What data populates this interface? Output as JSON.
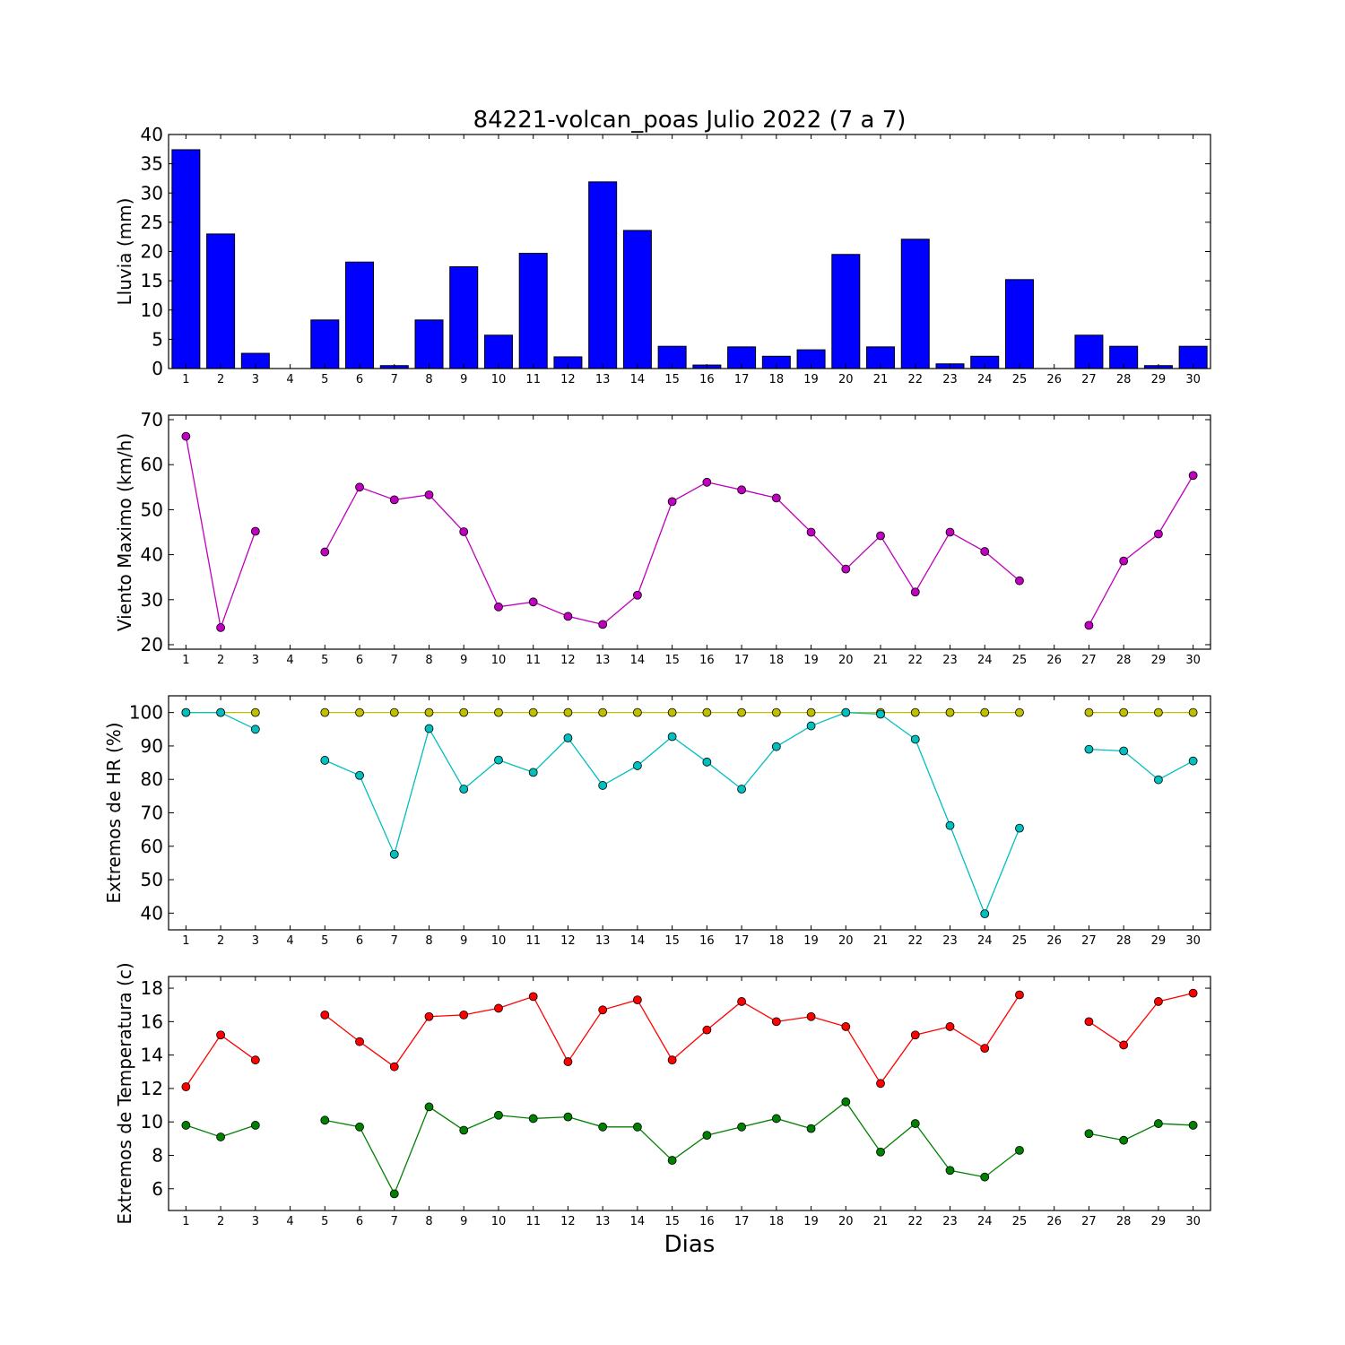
{
  "figure": {
    "title": "84221-volcan_poas Julio 2022  (7 a 7)",
    "xlabel": "Dias"
  },
  "chart_data": [
    {
      "type": "bar",
      "ylabel": "Lluvia (mm)",
      "ylim": [
        0,
        40
      ],
      "yticks": [
        0,
        5,
        10,
        15,
        20,
        25,
        30,
        35,
        40
      ],
      "xlim": [
        0.5,
        30.5
      ],
      "categories": [
        1,
        2,
        3,
        4,
        5,
        6,
        7,
        8,
        9,
        10,
        11,
        12,
        13,
        14,
        15,
        16,
        17,
        18,
        19,
        20,
        21,
        22,
        23,
        24,
        25,
        26,
        27,
        28,
        29,
        30
      ],
      "series": [
        {
          "color": "#0000ff",
          "values": [
            37.4,
            23.0,
            2.6,
            0.0,
            8.3,
            18.2,
            0.5,
            8.3,
            17.4,
            5.7,
            19.7,
            2.0,
            31.9,
            23.6,
            3.8,
            0.6,
            3.7,
            2.1,
            3.2,
            19.5,
            3.7,
            22.1,
            0.8,
            2.1,
            15.2,
            0.0,
            5.7,
            3.8,
            0.5,
            3.8
          ]
        }
      ]
    },
    {
      "type": "line",
      "ylabel": "Viento Maximo (km/h)",
      "ylim": [
        19,
        71
      ],
      "yticks": [
        20,
        30,
        40,
        50,
        60,
        70
      ],
      "xlim": [
        0.5,
        30.5
      ],
      "categories": [
        1,
        2,
        3,
        4,
        5,
        6,
        7,
        8,
        9,
        10,
        11,
        12,
        13,
        14,
        15,
        16,
        17,
        18,
        19,
        20,
        21,
        22,
        23,
        24,
        25,
        26,
        27,
        28,
        29,
        30
      ],
      "series": [
        {
          "color": "#bf00bf",
          "values": [
            66.3,
            23.8,
            45.2,
            null,
            40.6,
            55.0,
            52.2,
            53.3,
            45.1,
            28.4,
            29.5,
            26.3,
            24.5,
            31.0,
            51.8,
            56.1,
            54.4,
            52.6,
            45.0,
            36.8,
            44.2,
            31.7,
            45.0,
            40.7,
            34.2,
            null,
            24.3,
            38.6,
            44.6,
            57.6
          ]
        }
      ]
    },
    {
      "type": "line",
      "ylabel": "Extremos de HR (%)",
      "ylim": [
        35,
        105
      ],
      "yticks": [
        40,
        50,
        60,
        70,
        80,
        90,
        100
      ],
      "xlim": [
        0.5,
        30.5
      ],
      "categories": [
        1,
        2,
        3,
        4,
        5,
        6,
        7,
        8,
        9,
        10,
        11,
        12,
        13,
        14,
        15,
        16,
        17,
        18,
        19,
        20,
        21,
        22,
        23,
        24,
        25,
        26,
        27,
        28,
        29,
        30
      ],
      "series": [
        {
          "color": "#bfbf00",
          "values": [
            100,
            100,
            100,
            null,
            100,
            100,
            100,
            100,
            100,
            100,
            100,
            100,
            100,
            100,
            100,
            100,
            100,
            100,
            100,
            100,
            100,
            100,
            100,
            100,
            100,
            null,
            100,
            100,
            100,
            100
          ]
        },
        {
          "color": "#00bfbf",
          "values": [
            100,
            100,
            95.0,
            null,
            85.7,
            81.2,
            57.6,
            95.2,
            77.1,
            85.8,
            82.1,
            92.4,
            78.2,
            84.1,
            92.8,
            85.2,
            77.1,
            89.8,
            96.0,
            100,
            99.5,
            92.0,
            66.2,
            39.8,
            65.4,
            null,
            89.0,
            88.5,
            79.9,
            85.5
          ]
        }
      ]
    },
    {
      "type": "line",
      "ylabel": "Extremos de Temperatura (c)",
      "ylim": [
        4.7,
        18.7
      ],
      "yticks": [
        6,
        8,
        10,
        12,
        14,
        16,
        18
      ],
      "xlim": [
        0.5,
        30.5
      ],
      "categories": [
        1,
        2,
        3,
        4,
        5,
        6,
        7,
        8,
        9,
        10,
        11,
        12,
        13,
        14,
        15,
        16,
        17,
        18,
        19,
        20,
        21,
        22,
        23,
        24,
        25,
        26,
        27,
        28,
        29,
        30
      ],
      "series": [
        {
          "color": "#ff0000",
          "values": [
            12.1,
            15.2,
            13.7,
            null,
            16.4,
            14.8,
            13.3,
            16.3,
            16.4,
            16.8,
            17.5,
            13.6,
            16.7,
            17.3,
            13.7,
            15.5,
            17.2,
            16.0,
            16.3,
            15.7,
            12.3,
            15.2,
            15.7,
            14.4,
            17.6,
            null,
            16.0,
            14.6,
            17.2,
            17.7
          ]
        },
        {
          "color": "#008000",
          "values": [
            9.8,
            9.1,
            9.8,
            null,
            10.1,
            9.7,
            5.7,
            10.9,
            9.5,
            10.4,
            10.2,
            10.3,
            9.7,
            9.7,
            7.7,
            9.2,
            9.7,
            10.2,
            9.6,
            11.2,
            8.2,
            9.9,
            7.1,
            6.7,
            8.3,
            null,
            9.3,
            8.9,
            9.9,
            9.8
          ]
        }
      ]
    }
  ]
}
